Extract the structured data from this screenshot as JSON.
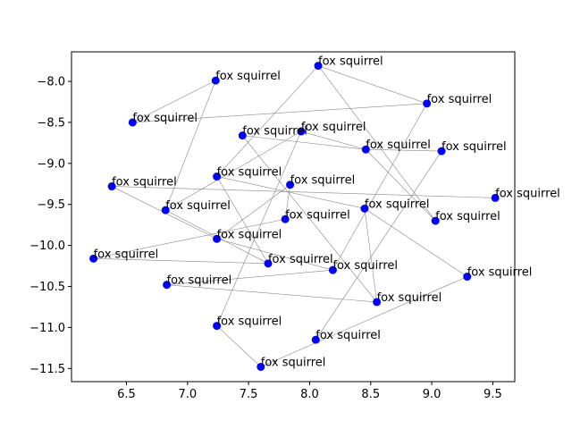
{
  "chart_data": {
    "type": "scatter",
    "title": "",
    "xlabel": "",
    "ylabel": "",
    "xlim": [
      6.05,
      9.68
    ],
    "ylim": [
      -11.66,
      -7.64
    ],
    "x_ticks": [
      6.5,
      7.0,
      7.5,
      8.0,
      8.5,
      9.0,
      9.5
    ],
    "y_ticks": [
      -8.0,
      -8.5,
      -9.0,
      -9.5,
      -10.0,
      -10.5,
      -11.0,
      -11.5
    ],
    "x_tick_labels": [
      "6.5",
      "7.0",
      "7.5",
      "8.0",
      "8.5",
      "9.0",
      "9.5"
    ],
    "y_tick_labels": [
      "−8.0",
      "−8.5",
      "−9.0",
      "−9.5",
      "−10.0",
      "−10.5",
      "−11.0",
      "−11.5"
    ],
    "grid": false,
    "marker_color": "#0000ff",
    "edge_color": "#888888",
    "points": [
      {
        "label": "fox squirrel",
        "x": 8.07,
        "y": -7.81
      },
      {
        "label": "fox squirrel",
        "x": 7.23,
        "y": -7.99
      },
      {
        "label": "fox squirrel",
        "x": 8.96,
        "y": -8.27
      },
      {
        "label": "fox squirrel",
        "x": 6.55,
        "y": -8.5
      },
      {
        "label": "fox squirrel",
        "x": 7.45,
        "y": -8.66
      },
      {
        "label": "fox squirrel",
        "x": 7.93,
        "y": -8.61
      },
      {
        "label": "fox squirrel",
        "x": 8.46,
        "y": -8.83
      },
      {
        "label": "fox squirrel",
        "x": 9.08,
        "y": -8.85
      },
      {
        "label": "fox squirrel",
        "x": 7.24,
        "y": -9.16
      },
      {
        "label": "fox squirrel",
        "x": 6.38,
        "y": -9.28
      },
      {
        "label": "fox squirrel",
        "x": 7.84,
        "y": -9.26
      },
      {
        "label": "fox squirrel",
        "x": 9.52,
        "y": -9.42
      },
      {
        "label": "fox squirrel",
        "x": 6.82,
        "y": -9.57
      },
      {
        "label": "fox squirrel",
        "x": 8.45,
        "y": -9.55
      },
      {
        "label": "fox squirrel",
        "x": 7.8,
        "y": -9.68
      },
      {
        "label": "fox squirrel",
        "x": 9.03,
        "y": -9.7
      },
      {
        "label": "fox squirrel",
        "x": 7.24,
        "y": -9.92
      },
      {
        "label": "fox squirrel",
        "x": 6.23,
        "y": -10.16
      },
      {
        "label": "fox squirrel",
        "x": 7.66,
        "y": -10.22
      },
      {
        "label": "fox squirrel",
        "x": 8.19,
        "y": -10.3
      },
      {
        "label": "fox squirrel",
        "x": 9.29,
        "y": -10.38
      },
      {
        "label": "fox squirrel",
        "x": 6.83,
        "y": -10.48
      },
      {
        "label": "fox squirrel",
        "x": 8.55,
        "y": -10.69
      },
      {
        "label": "fox squirrel",
        "x": 7.24,
        "y": -10.98
      },
      {
        "label": "fox squirrel",
        "x": 8.05,
        "y": -11.15
      },
      {
        "label": "fox squirrel",
        "x": 7.6,
        "y": -11.48
      }
    ],
    "edges": [
      [
        0,
        8
      ],
      [
        0,
        2
      ],
      [
        0,
        15
      ],
      [
        1,
        3
      ],
      [
        1,
        12
      ],
      [
        2,
        19
      ],
      [
        3,
        2
      ],
      [
        4,
        6
      ],
      [
        4,
        22
      ],
      [
        5,
        6
      ],
      [
        5,
        12
      ],
      [
        5,
        23
      ],
      [
        6,
        15
      ],
      [
        6,
        7
      ],
      [
        8,
        13
      ],
      [
        8,
        18
      ],
      [
        9,
        11
      ],
      [
        9,
        16
      ],
      [
        10,
        16
      ],
      [
        10,
        14
      ],
      [
        13,
        22
      ],
      [
        13,
        20
      ],
      [
        14,
        17
      ],
      [
        16,
        19
      ],
      [
        17,
        18
      ],
      [
        18,
        12
      ],
      [
        21,
        22
      ],
      [
        21,
        19
      ],
      [
        23,
        25
      ],
      [
        25,
        20
      ],
      [
        24,
        7
      ]
    ]
  }
}
